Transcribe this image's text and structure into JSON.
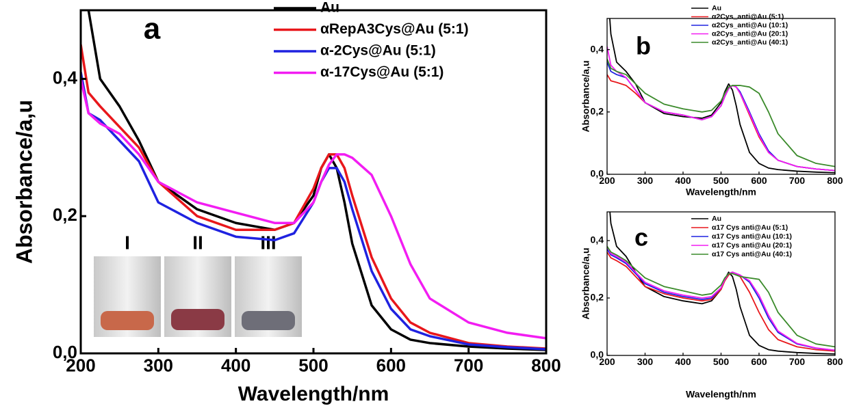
{
  "chart_data": [
    {
      "type": "line",
      "panel_label": "a",
      "x_label": "Wavelength/nm",
      "y_label": "Absorbance/a,u",
      "annotations": [
        "I",
        "II",
        "III"
      ],
      "x": [
        200,
        210,
        225,
        250,
        275,
        300,
        350,
        400,
        450,
        475,
        500,
        510,
        520,
        530,
        540,
        550,
        575,
        600,
        625,
        650,
        700,
        750,
        800
      ],
      "xlim": [
        200,
        800
      ],
      "xticks": [
        200,
        300,
        400,
        500,
        600,
        700,
        800
      ],
      "ylim": [
        0,
        0.5
      ],
      "yticks": [
        {
          "value": 0,
          "label": "0,0"
        },
        {
          "value": 0.2,
          "label": "0,2"
        },
        {
          "value": 0.4,
          "label": "0,4"
        }
      ],
      "series": [
        {
          "name": "Au",
          "color": "#000000",
          "values": [
            0.62,
            0.5,
            0.4,
            0.36,
            0.31,
            0.25,
            0.21,
            0.19,
            0.18,
            0.19,
            0.23,
            0.27,
            0.29,
            0.27,
            0.22,
            0.16,
            0.07,
            0.035,
            0.02,
            0.015,
            0.01,
            0.007,
            0.005
          ]
        },
        {
          "name": "αRepA3Cys@Au (5:1)",
          "color": "#e8171b",
          "values": [
            0.45,
            0.38,
            0.36,
            0.33,
            0.3,
            0.25,
            0.2,
            0.18,
            0.18,
            0.19,
            0.24,
            0.27,
            0.29,
            0.29,
            0.27,
            0.23,
            0.14,
            0.08,
            0.045,
            0.03,
            0.015,
            0.01,
            0.007
          ]
        },
        {
          "name": "α-2Cys@Au (5:1)",
          "color": "#1f22e0",
          "values": [
            0.41,
            0.35,
            0.34,
            0.31,
            0.28,
            0.22,
            0.19,
            0.17,
            0.165,
            0.175,
            0.22,
            0.25,
            0.27,
            0.27,
            0.25,
            0.21,
            0.12,
            0.065,
            0.035,
            0.025,
            0.013,
            0.009,
            0.006
          ]
        },
        {
          "name": "α-17Cys@Au (5:1)",
          "color": "#f21df2",
          "values": [
            0.4,
            0.35,
            0.335,
            0.32,
            0.29,
            0.25,
            0.22,
            0.205,
            0.19,
            0.19,
            0.22,
            0.25,
            0.275,
            0.29,
            0.29,
            0.285,
            0.26,
            0.2,
            0.13,
            0.08,
            0.045,
            0.03,
            0.022
          ]
        }
      ]
    },
    {
      "type": "line",
      "panel_label": "b",
      "x_label": "Wavelength/nm",
      "y_label": "Absorbance/a,u",
      "x": [
        200,
        210,
        225,
        250,
        275,
        300,
        350,
        400,
        450,
        475,
        500,
        510,
        520,
        530,
        540,
        550,
        575,
        600,
        625,
        650,
        700,
        750,
        800
      ],
      "xlim": [
        200,
        800
      ],
      "xticks": [
        200,
        300,
        400,
        500,
        600,
        700,
        800
      ],
      "ylim": [
        0,
        0.5
      ],
      "yticks": [
        {
          "value": 0,
          "label": "0,0"
        },
        {
          "value": 0.2,
          "label": "0,2"
        },
        {
          "value": 0.4,
          "label": "0,4"
        }
      ],
      "series": [
        {
          "name": "Au",
          "color": "#000000",
          "values": [
            0.62,
            0.45,
            0.36,
            0.33,
            0.29,
            0.23,
            0.195,
            0.185,
            0.18,
            0.19,
            0.23,
            0.265,
            0.29,
            0.27,
            0.22,
            0.16,
            0.07,
            0.035,
            0.02,
            0.015,
            0.01,
            0.007,
            0.005
          ]
        },
        {
          "name": "α2Cys_anti@Au (5:1)",
          "color": "#e8171b",
          "values": [
            0.32,
            0.3,
            0.295,
            0.285,
            0.26,
            0.23,
            0.2,
            0.19,
            0.175,
            0.185,
            0.22,
            0.25,
            0.275,
            0.285,
            0.28,
            0.26,
            0.19,
            0.12,
            0.07,
            0.045,
            0.025,
            0.017,
            0.012
          ]
        },
        {
          "name": "α2Cys_anti@Au (10:1)",
          "color": "#1f22e0",
          "values": [
            0.36,
            0.33,
            0.32,
            0.31,
            0.27,
            0.23,
            0.2,
            0.19,
            0.175,
            0.185,
            0.22,
            0.25,
            0.275,
            0.285,
            0.28,
            0.265,
            0.2,
            0.13,
            0.075,
            0.045,
            0.025,
            0.017,
            0.012
          ]
        },
        {
          "name": "α2Cys_anti@Au (20:1)",
          "color": "#f21df2",
          "values": [
            0.41,
            0.35,
            0.33,
            0.31,
            0.27,
            0.23,
            0.2,
            0.19,
            0.175,
            0.185,
            0.22,
            0.25,
            0.275,
            0.285,
            0.28,
            0.26,
            0.195,
            0.125,
            0.07,
            0.045,
            0.025,
            0.017,
            0.012
          ]
        },
        {
          "name": "α2Cys_anti@Au (40:1)",
          "color": "#3a8a2a",
          "values": [
            0.37,
            0.34,
            0.33,
            0.32,
            0.29,
            0.26,
            0.225,
            0.21,
            0.2,
            0.205,
            0.235,
            0.26,
            0.28,
            0.285,
            0.285,
            0.285,
            0.28,
            0.26,
            0.2,
            0.13,
            0.06,
            0.035,
            0.025
          ]
        }
      ]
    },
    {
      "type": "line",
      "panel_label": "c",
      "x_label": "Wavelength/nm",
      "y_label": "Absorbance/a,u",
      "x": [
        200,
        210,
        225,
        250,
        275,
        300,
        350,
        400,
        450,
        475,
        500,
        510,
        520,
        530,
        540,
        550,
        575,
        600,
        625,
        650,
        700,
        750,
        800
      ],
      "xlim": [
        200,
        800
      ],
      "xticks": [
        200,
        300,
        400,
        500,
        600,
        700,
        800
      ],
      "ylim": [
        0,
        0.5
      ],
      "yticks": [
        {
          "value": 0,
          "label": "0,0"
        },
        {
          "value": 0.2,
          "label": "0,2"
        },
        {
          "value": 0.4,
          "label": "0,4"
        }
      ],
      "series": [
        {
          "name": "Au",
          "color": "#000000",
          "values": [
            0.62,
            0.46,
            0.38,
            0.345,
            0.29,
            0.24,
            0.205,
            0.19,
            0.18,
            0.19,
            0.23,
            0.265,
            0.29,
            0.275,
            0.23,
            0.17,
            0.07,
            0.035,
            0.02,
            0.015,
            0.01,
            0.007,
            0.005
          ]
        },
        {
          "name": "α17 Cys anti@Au (5:1)",
          "color": "#e8171b",
          "values": [
            0.36,
            0.34,
            0.33,
            0.31,
            0.275,
            0.24,
            0.215,
            0.2,
            0.19,
            0.195,
            0.23,
            0.26,
            0.28,
            0.29,
            0.285,
            0.275,
            0.22,
            0.15,
            0.09,
            0.055,
            0.03,
            0.02,
            0.015
          ]
        },
        {
          "name": "α17 Cys anti@Au (10:1)",
          "color": "#1f22e0",
          "values": [
            0.37,
            0.35,
            0.34,
            0.32,
            0.285,
            0.25,
            0.22,
            0.205,
            0.195,
            0.2,
            0.235,
            0.265,
            0.285,
            0.29,
            0.285,
            0.28,
            0.255,
            0.2,
            0.13,
            0.08,
            0.04,
            0.025,
            0.018
          ]
        },
        {
          "name": "α17 Cys anti@Au (20:1)",
          "color": "#f21df2",
          "values": [
            0.38,
            0.355,
            0.345,
            0.325,
            0.29,
            0.255,
            0.225,
            0.21,
            0.2,
            0.205,
            0.235,
            0.265,
            0.285,
            0.29,
            0.285,
            0.28,
            0.26,
            0.21,
            0.14,
            0.085,
            0.042,
            0.026,
            0.018
          ]
        },
        {
          "name": "α17 Cys anti@Au (40:1)",
          "color": "#3a8a2a",
          "values": [
            0.38,
            0.36,
            0.35,
            0.33,
            0.3,
            0.27,
            0.24,
            0.225,
            0.21,
            0.215,
            0.245,
            0.27,
            0.285,
            0.285,
            0.28,
            0.275,
            0.27,
            0.265,
            0.22,
            0.15,
            0.07,
            0.04,
            0.03
          ]
        }
      ]
    }
  ]
}
